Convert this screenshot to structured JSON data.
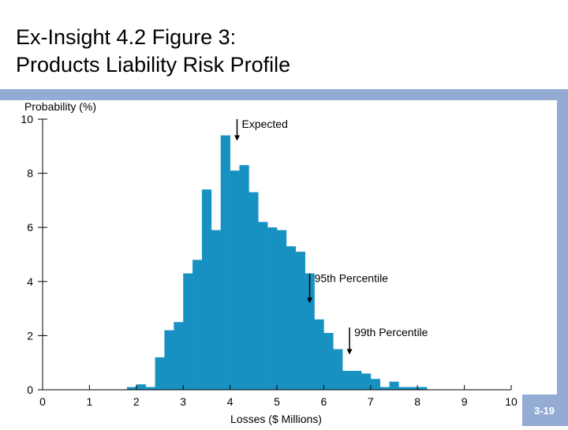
{
  "slide": {
    "title_line1": "Ex-Insight 4.2 Figure 3:",
    "title_line2": "Products Liability Risk Profile",
    "page_number": "3-19"
  },
  "colors": {
    "bar": "#1791c2",
    "band": "#94acd4",
    "axis": "#000000"
  },
  "chart_data": {
    "type": "bar",
    "title": "",
    "xlabel": "Losses ($ Millions)",
    "ylabel": "Probability (%)",
    "xlim": [
      0,
      10
    ],
    "ylim": [
      0,
      10
    ],
    "xticks": [
      "0",
      "1",
      "2",
      "3",
      "4",
      "5",
      "6",
      "7",
      "8",
      "9",
      "10"
    ],
    "yticks": [
      "0",
      "2",
      "4",
      "6",
      "8",
      "10"
    ],
    "bin_width": 0.2,
    "bins": [
      {
        "x": 1.8,
        "y": 0.1
      },
      {
        "x": 2.0,
        "y": 0.2
      },
      {
        "x": 2.2,
        "y": 0.1
      },
      {
        "x": 2.4,
        "y": 1.2
      },
      {
        "x": 2.6,
        "y": 2.2
      },
      {
        "x": 2.8,
        "y": 2.5
      },
      {
        "x": 3.0,
        "y": 4.3
      },
      {
        "x": 3.2,
        "y": 4.8
      },
      {
        "x": 3.4,
        "y": 7.4
      },
      {
        "x": 3.6,
        "y": 5.9
      },
      {
        "x": 3.8,
        "y": 9.4
      },
      {
        "x": 4.0,
        "y": 8.1
      },
      {
        "x": 4.2,
        "y": 8.3
      },
      {
        "x": 4.4,
        "y": 7.3
      },
      {
        "x": 4.6,
        "y": 6.2
      },
      {
        "x": 4.8,
        "y": 6.0
      },
      {
        "x": 5.0,
        "y": 5.9
      },
      {
        "x": 5.2,
        "y": 5.3
      },
      {
        "x": 5.4,
        "y": 5.1
      },
      {
        "x": 5.6,
        "y": 4.3
      },
      {
        "x": 5.8,
        "y": 2.6
      },
      {
        "x": 6.0,
        "y": 2.1
      },
      {
        "x": 6.2,
        "y": 1.5
      },
      {
        "x": 6.4,
        "y": 0.7
      },
      {
        "x": 6.6,
        "y": 0.7
      },
      {
        "x": 6.8,
        "y": 0.6
      },
      {
        "x": 7.0,
        "y": 0.4
      },
      {
        "x": 7.2,
        "y": 0.1
      },
      {
        "x": 7.4,
        "y": 0.3
      },
      {
        "x": 7.6,
        "y": 0.1
      },
      {
        "x": 7.8,
        "y": 0.1
      },
      {
        "x": 8.0,
        "y": 0.1
      }
    ],
    "annotations": [
      {
        "label": "Expected",
        "x": 4.15,
        "arrow_top": 10.0,
        "arrow_bottom": 9.2
      },
      {
        "label": "95th Percentile",
        "x": 5.7,
        "arrow_top": 4.3,
        "arrow_bottom": 3.2
      },
      {
        "label": "99th Percentile",
        "x": 6.55,
        "arrow_top": 2.3,
        "arrow_bottom": 1.3
      }
    ]
  }
}
